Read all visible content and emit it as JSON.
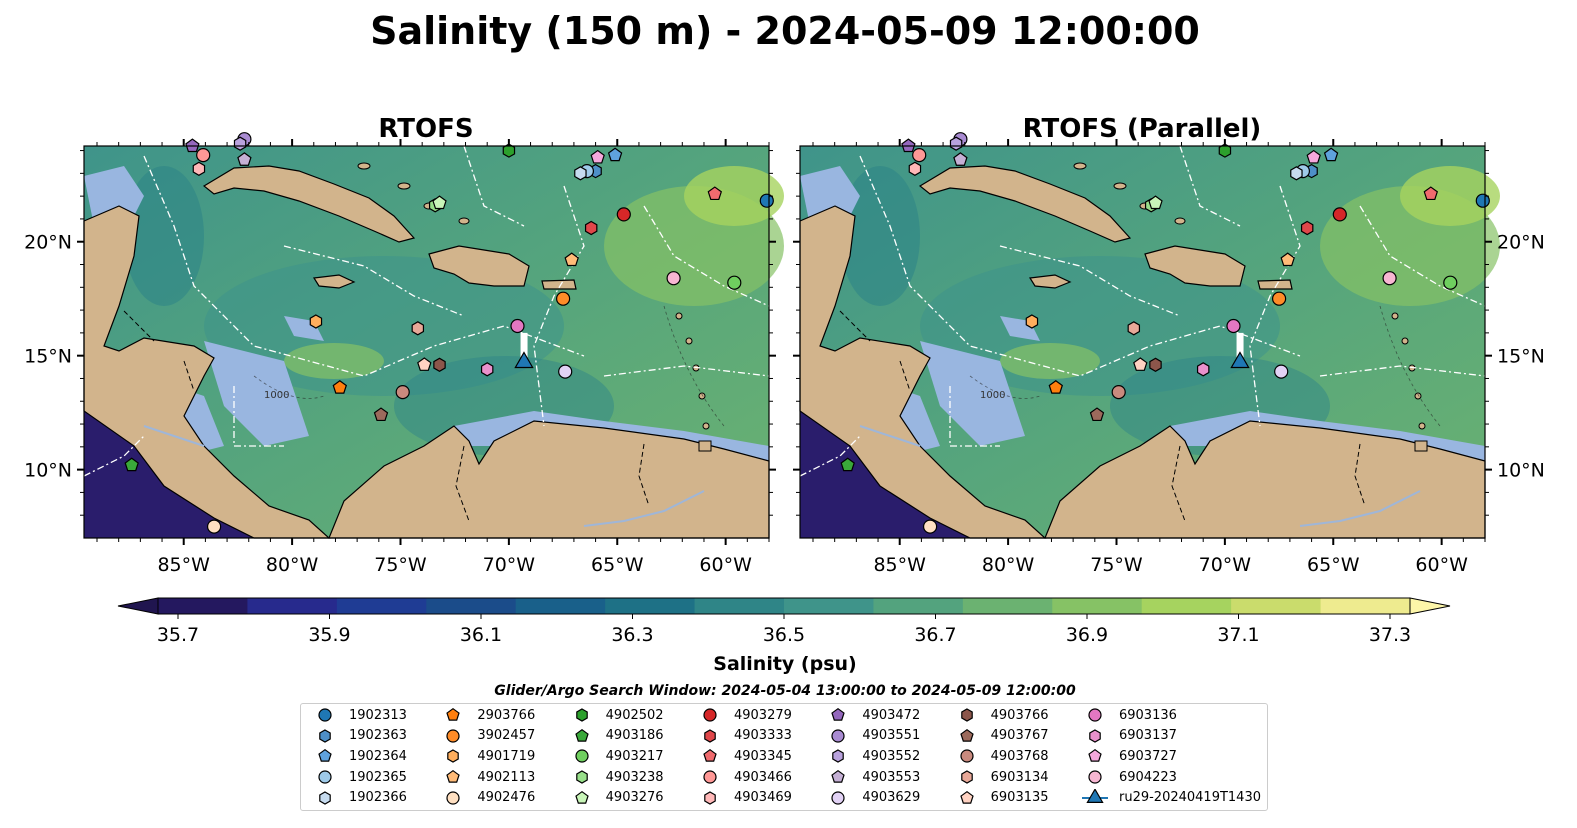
{
  "figure": {
    "title": "Salinity (150 m) - 2024-05-09 12:00:00",
    "panels": [
      {
        "title": "RTOFS",
        "glider_offset": [
          0,
          0
        ]
      },
      {
        "title": "RTOFS (Parallel)",
        "glider_offset": [
          0,
          0
        ]
      }
    ],
    "lat_ticks": [
      "10°N",
      "15°N",
      "20°N"
    ],
    "lon_ticks": [
      "85°W",
      "80°W",
      "75°W",
      "70°W",
      "65°W",
      "60°W"
    ],
    "contour_label": "1000",
    "extent": {
      "lon_min": -89.6,
      "lon_max": -58.0,
      "lat_min": 7.0,
      "lat_max": 24.2
    }
  },
  "colorbar": {
    "label": "Salinity (psu)",
    "ticks": [
      "35.7",
      "35.9",
      "36.1",
      "36.3",
      "36.5",
      "36.7",
      "36.9",
      "37.1",
      "37.3"
    ],
    "colors": [
      "#24185f",
      "#272a8d",
      "#1f3c94",
      "#1b4c8a",
      "#19608a",
      "#1e7186",
      "#2f8587",
      "#3f948a",
      "#53a37e",
      "#6bb271",
      "#86c265",
      "#a6d35f",
      "#cadc6c",
      "#eeeb8f"
    ],
    "extend": "both"
  },
  "search_window": "Glider/Argo Search Window: 2024-05-04 13:00:00 to 2024-05-09 12:00:00",
  "colors": {
    "land": "#d2b48c",
    "shelf": "#99b6e0",
    "deep": "#2a1d6c"
  },
  "map_data": {
    "floats": [
      {
        "id": "1902313",
        "marker": "circle",
        "color": "#1f77b4",
        "lon": -58.1,
        "lat": 21.8
      },
      {
        "id": "1902363",
        "marker": "hexagon",
        "color": "#4e8fc8",
        "lon": -66.0,
        "lat": 23.1
      },
      {
        "id": "1902364",
        "marker": "pentagon",
        "color": "#5fa2dd",
        "lon": -65.1,
        "lat": 23.8
      },
      {
        "id": "1902365",
        "marker": "circle",
        "color": "#9ecae9",
        "lon": -66.4,
        "lat": 23.1
      },
      {
        "id": "1902366",
        "marker": "hexagon",
        "color": "#c6dbef",
        "lon": -66.7,
        "lat": 23.0
      },
      {
        "id": "2903766",
        "marker": "pentagon",
        "color": "#ff7f0e",
        "lon": -77.8,
        "lat": 13.6
      },
      {
        "id": "3902457",
        "marker": "circle",
        "color": "#ff8c28",
        "lon": -67.5,
        "lat": 17.5
      },
      {
        "id": "4901719",
        "marker": "hexagon",
        "color": "#ffae5d",
        "lon": -78.9,
        "lat": 16.5
      },
      {
        "id": "4902113",
        "marker": "pentagon",
        "color": "#ffbb78",
        "lon": -67.1,
        "lat": 19.2
      },
      {
        "id": "4902476",
        "marker": "circle",
        "color": "#ffe0c2",
        "lon": -83.6,
        "lat": 7.5
      },
      {
        "id": "4902502",
        "marker": "hexagon",
        "color": "#2ca02c",
        "lon": -70.0,
        "lat": 24.0
      },
      {
        "id": "4903186",
        "marker": "pentagon",
        "color": "#3aa83a",
        "lon": -87.4,
        "lat": 10.2
      },
      {
        "id": "4903217",
        "marker": "circle",
        "color": "#6fcf5f",
        "lon": -59.6,
        "lat": 18.2
      },
      {
        "id": "4903238",
        "marker": "hexagon",
        "color": "#98df8a",
        "lon": -73.4,
        "lat": 21.6
      },
      {
        "id": "4903276",
        "marker": "pentagon",
        "color": "#c8f5b8",
        "lon": -73.2,
        "lat": 21.7
      },
      {
        "id": "4903279",
        "marker": "circle",
        "color": "#d62728",
        "lon": -64.7,
        "lat": 21.2
      },
      {
        "id": "4903333",
        "marker": "hexagon",
        "color": "#e0474a",
        "lon": -66.2,
        "lat": 20.6
      },
      {
        "id": "4903345",
        "marker": "pentagon",
        "color": "#f06b6e",
        "lon": -60.5,
        "lat": 22.1
      },
      {
        "id": "4903466",
        "marker": "circle",
        "color": "#ff9896",
        "lon": -84.1,
        "lat": 23.8
      },
      {
        "id": "4903469",
        "marker": "hexagon",
        "color": "#ffb8b8",
        "lon": -84.3,
        "lat": 23.2
      },
      {
        "id": "4903472",
        "marker": "pentagon",
        "color": "#9467bd",
        "lon": -84.6,
        "lat": 24.2
      },
      {
        "id": "4903551",
        "marker": "circle",
        "color": "#a98bd2",
        "lon": -82.2,
        "lat": 24.5
      },
      {
        "id": "4903552",
        "marker": "hexagon",
        "color": "#b9a2dd",
        "lon": -82.4,
        "lat": 24.3
      },
      {
        "id": "4903553",
        "marker": "pentagon",
        "color": "#c5b0d5",
        "lon": -82.2,
        "lat": 23.6
      },
      {
        "id": "4903629",
        "marker": "circle",
        "color": "#e2d2f5",
        "lon": -67.4,
        "lat": 14.3
      },
      {
        "id": "4903766",
        "marker": "hexagon",
        "color": "#8c564b",
        "lon": -73.2,
        "lat": 14.6
      },
      {
        "id": "4903767",
        "marker": "pentagon",
        "color": "#9c6a5c",
        "lon": -75.9,
        "lat": 12.4
      },
      {
        "id": "4903768",
        "marker": "circle",
        "color": "#c98a7e",
        "lon": -74.9,
        "lat": 13.4
      },
      {
        "id": "6903134",
        "marker": "hexagon",
        "color": "#e8a898",
        "lon": -74.2,
        "lat": 16.2
      },
      {
        "id": "6903135",
        "marker": "pentagon",
        "color": "#ffd2c2",
        "lon": -73.9,
        "lat": 14.6
      },
      {
        "id": "6903136",
        "marker": "circle",
        "color": "#e377c2",
        "lon": -69.6,
        "lat": 16.3
      },
      {
        "id": "6903137",
        "marker": "hexagon",
        "color": "#e991cc",
        "lon": -71.0,
        "lat": 14.4
      },
      {
        "id": "6903727",
        "marker": "pentagon",
        "color": "#f5a8dc",
        "lon": -65.9,
        "lat": 23.7
      },
      {
        "id": "6904223",
        "marker": "circle",
        "color": "#f7b6d2",
        "lon": -62.4,
        "lat": 18.4
      }
    ],
    "glider": {
      "id": "ru29-20240419T1430",
      "marker": "triangle",
      "color": "#1f77b4",
      "track": [
        {
          "lon": -69.3,
          "lat": 16.0
        },
        {
          "lon": -69.3,
          "lat": 14.7
        }
      ]
    }
  }
}
